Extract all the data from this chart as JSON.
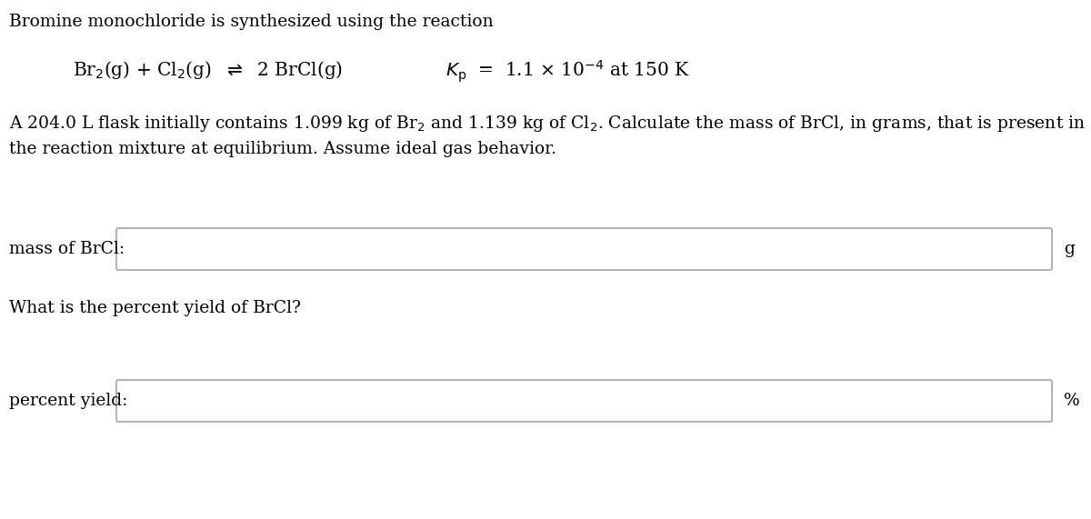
{
  "background_color": "#ffffff",
  "line1": "Bromine monochloride is synthesized using the reaction",
  "problem_line1": "A 204.0 L flask initially contains 1.099 kg of Br$_2$ and 1.139 kg of Cl$_2$. Calculate the mass of BrCl, in grams, that is present in",
  "problem_line2": "the reaction mixture at equilibrium. Assume ideal gas behavior.",
  "label1": "mass of BrCl:",
  "unit1": "g",
  "label2": "percent yield:",
  "unit2": "%",
  "question2": "What is the percent yield of BrCl?",
  "font_size": 13.5,
  "font_size_reaction": 14.5,
  "font_family": "DejaVu Serif",
  "box_color": "#aaaaaa"
}
